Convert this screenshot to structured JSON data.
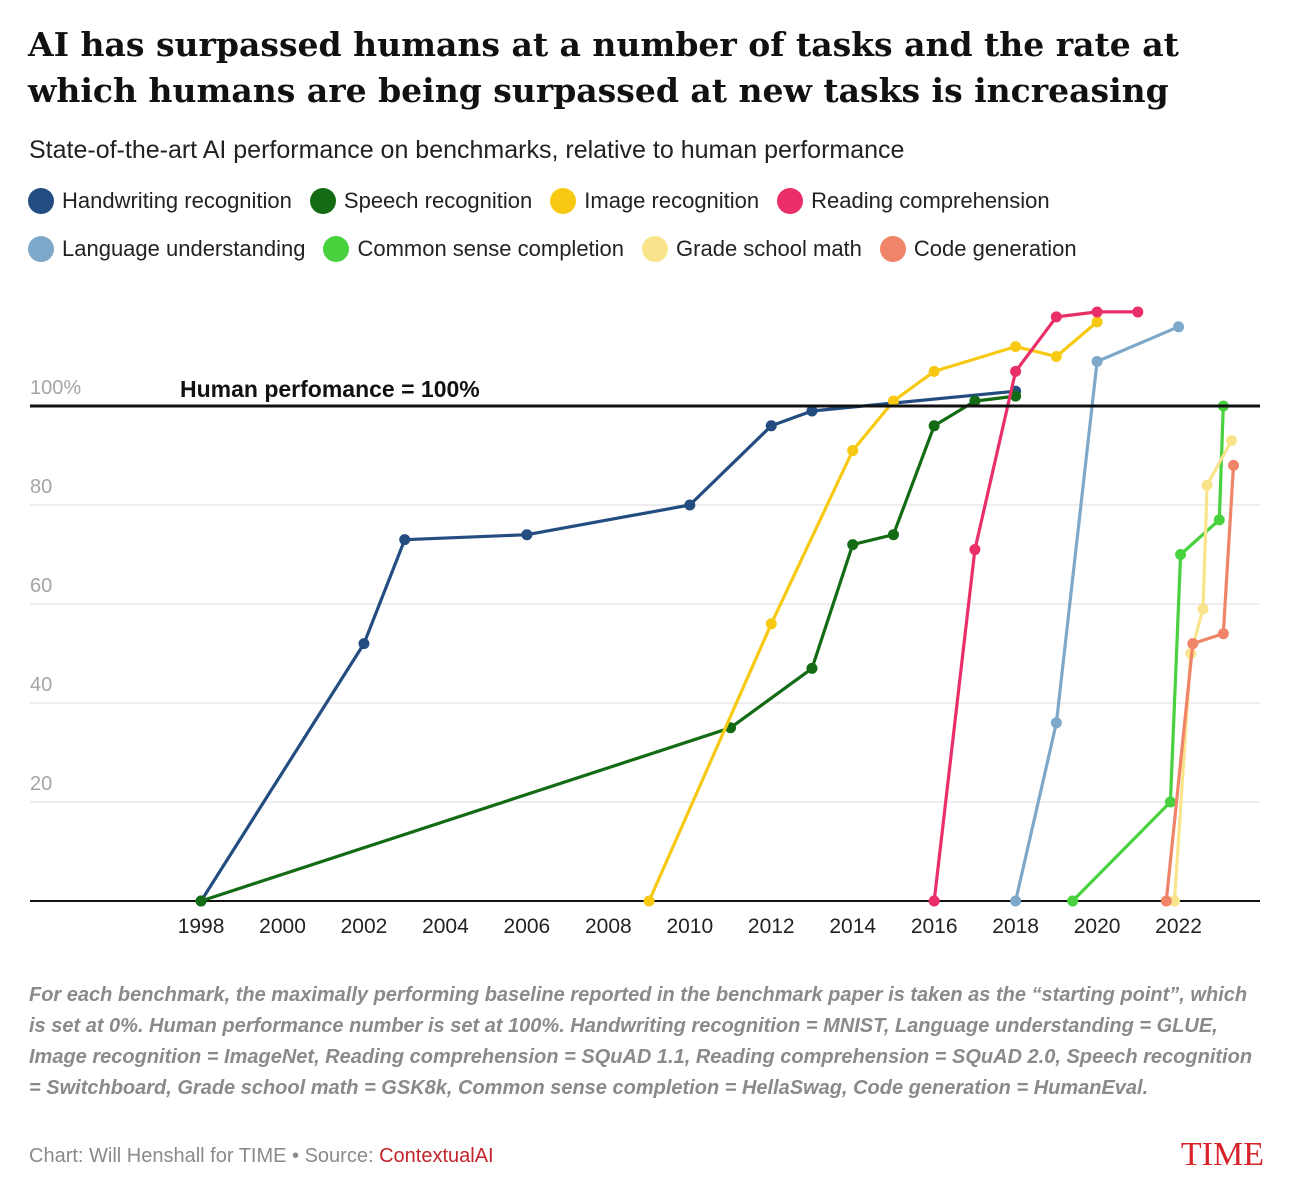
{
  "header": {
    "title": "AI has surpassed humans at a number of tasks and the rate at which humans are being surpassed at new tasks is increasing",
    "subtitle": "State-of-the-art AI performance on benchmarks, relative to human performance"
  },
  "legend": [
    {
      "label": "Handwriting recognition",
      "color": "#234d80"
    },
    {
      "label": "Speech recognition",
      "color": "#136b13"
    },
    {
      "label": "Image recognition",
      "color": "#f7c913"
    },
    {
      "label": "Reading comprehension",
      "color": "#ea2e68"
    },
    {
      "label": "Language understanding",
      "color": "#7ea8c9"
    },
    {
      "label": "Common sense completion",
      "color": "#48d23e"
    },
    {
      "label": "Grade school math",
      "color": "#f9e48c"
    },
    {
      "label": "Code generation",
      "color": "#f08469"
    }
  ],
  "chart_data": {
    "type": "line",
    "xlabel": "",
    "ylabel": "",
    "xlim": [
      1993.8,
      2024
    ],
    "ylim": [
      0,
      120
    ],
    "x_ticks": [
      "1998",
      "2000",
      "2002",
      "2004",
      "2006",
      "2008",
      "2010",
      "2012",
      "2014",
      "2016",
      "2018",
      "2020",
      "2022"
    ],
    "y_ticks": [
      "20",
      "40",
      "60",
      "80",
      "100%"
    ],
    "grid": true,
    "reference_line": {
      "y": 100,
      "label": "Human perfomance = 100%"
    },
    "series": [
      {
        "name": "Handwriting recognition",
        "color": "#234d80",
        "x": [
          1998,
          2002,
          2003,
          2006,
          2010,
          2012,
          2013,
          2018
        ],
        "y": [
          0,
          52,
          73,
          74,
          80,
          96,
          99,
          103
        ]
      },
      {
        "name": "Speech recognition",
        "color": "#136b13",
        "x": [
          1998,
          2011,
          2013,
          2014,
          2015,
          2016,
          2017,
          2018
        ],
        "y": [
          0,
          35,
          47,
          72,
          74,
          96,
          101,
          102
        ]
      },
      {
        "name": "Image recognition",
        "color": "#f7c913",
        "x": [
          2009,
          2012,
          2014,
          2015,
          2016,
          2018,
          2019,
          2020
        ],
        "y": [
          0,
          56,
          91,
          101,
          107,
          112,
          110,
          117
        ]
      },
      {
        "name": "Reading comprehension",
        "color": "#ea2e68",
        "x": [
          2016,
          2017,
          2018,
          2019,
          2020,
          2021
        ],
        "y": [
          0,
          71,
          107,
          118,
          119,
          119
        ]
      },
      {
        "name": "Language understanding",
        "color": "#7ea8c9",
        "x": [
          2018,
          2019,
          2020,
          2022
        ],
        "y": [
          0,
          36,
          109,
          116
        ]
      },
      {
        "name": "Common sense completion",
        "color": "#48d23e",
        "x": [
          2019.4,
          2021.8,
          2022.05,
          2023,
          2023.1
        ],
        "y": [
          0,
          20,
          70,
          77,
          100
        ]
      },
      {
        "name": "Grade school math",
        "color": "#f9e48c",
        "x": [
          2021.9,
          2022.3,
          2022.6,
          2022.7,
          2023.3
        ],
        "y": [
          0,
          50,
          59,
          84,
          93
        ]
      },
      {
        "name": "Code generation",
        "color": "#f08469",
        "x": [
          2021.7,
          2022.35,
          2023.1,
          2023.35
        ],
        "y": [
          0,
          52,
          54,
          88
        ]
      }
    ]
  },
  "footnote": "For each benchmark, the maximally performing baseline reported in the benchmark paper is taken as the “starting point”, which is set at 0%. Human performance number is set at 100%. Handwriting recognition = MNIST, Language understanding = GLUE, Image recognition = ImageNet, Reading comprehension = SQuAD 1.1, Reading comprehension = SQuAD 2.0, Speech recognition = Switchboard, Grade school math = GSK8k, Common sense completion = HellaSwag, Code generation = HumanEval.",
  "credit": {
    "prefix": "Chart: Will Henshall for TIME • Source: ",
    "source": "ContextualAI"
  },
  "logo": "TIME"
}
